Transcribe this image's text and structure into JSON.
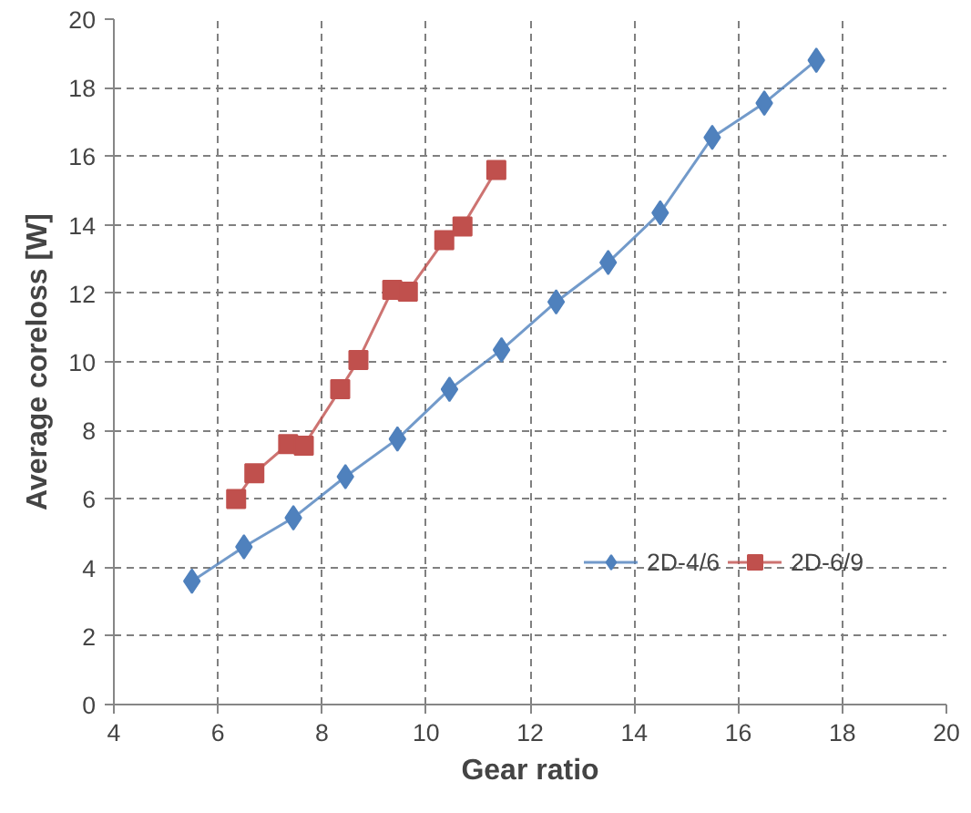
{
  "chart_data": {
    "type": "line",
    "xlabel": "Gear ratio",
    "ylabel": "Average coreloss [W]",
    "xlim": [
      4,
      20
    ],
    "xticks": [
      4,
      6,
      8,
      10,
      12,
      14,
      16,
      18,
      20
    ],
    "ylim": [
      0,
      20
    ],
    "yticks": [
      0,
      2,
      4,
      6,
      8,
      10,
      12,
      14,
      16,
      18,
      20
    ],
    "grid": true,
    "legend": "bottom right",
    "line_style": "solid",
    "series": [
      {
        "name": "2D-4/6",
        "color": "#4f81bd",
        "marker": "diamond",
        "x": [
          5.5,
          6.5,
          7.45,
          8.45,
          9.45,
          10.45,
          11.45,
          12.5,
          13.5,
          14.5,
          15.5,
          16.5,
          17.5
        ],
        "values": [
          3.6,
          4.6,
          5.45,
          6.65,
          7.75,
          9.2,
          10.35,
          11.75,
          12.9,
          14.35,
          16.55,
          17.55,
          18.8
        ]
      },
      {
        "name": "2D-6/9",
        "color": "#c0504d",
        "marker": "square",
        "x": [
          6.35,
          6.7,
          7.35,
          7.65,
          8.35,
          8.7,
          9.35,
          9.65,
          10.35,
          10.7,
          11.35
        ],
        "values": [
          6.0,
          6.75,
          7.6,
          7.55,
          9.2,
          10.05,
          12.1,
          12.05,
          13.55,
          13.95,
          15.6
        ]
      }
    ]
  }
}
